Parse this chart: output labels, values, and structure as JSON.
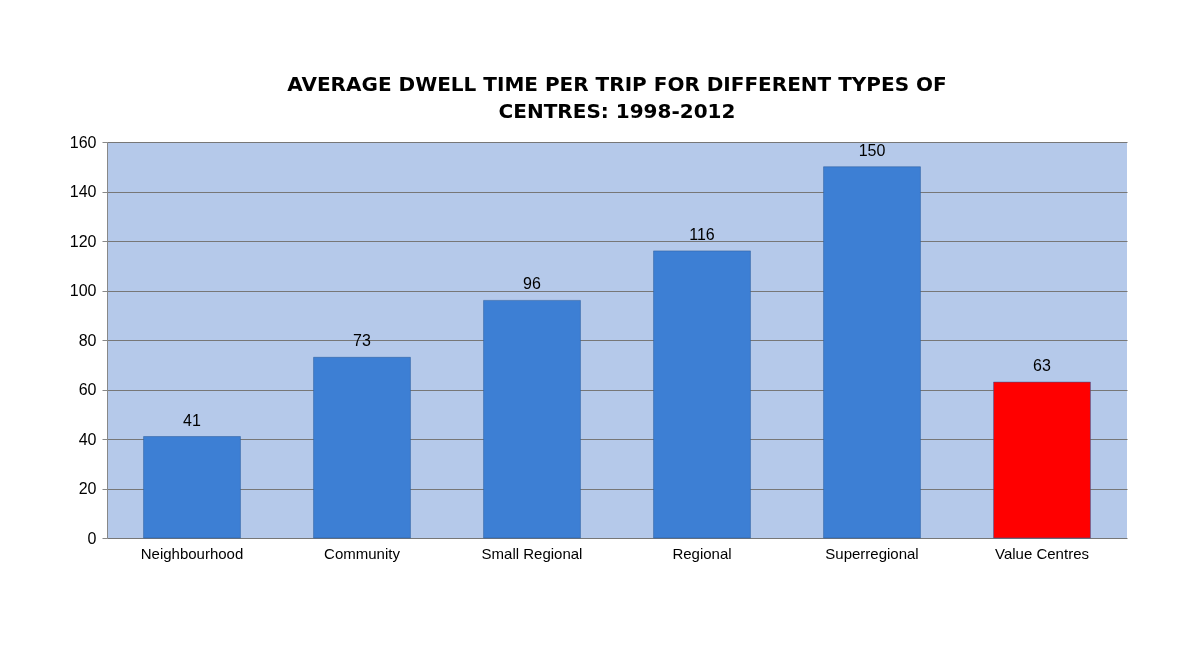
{
  "chart_data": {
    "type": "bar",
    "title": "AVERAGE DWELL TIME PER TRIP FOR DIFFERENT TYPES OF CENTRES:   1998-2012",
    "categories": [
      "Neighbourhood",
      "Community",
      "Small Regional",
      "Regional",
      "Superregional",
      "Value Centres"
    ],
    "values": [
      41,
      73,
      96,
      116,
      150,
      63
    ],
    "colors": [
      "#3d7fd4",
      "#3d7fd4",
      "#3d7fd4",
      "#3d7fd4",
      "#3d7fd4",
      "#ff0000"
    ],
    "ylim": [
      0,
      160
    ],
    "yticks": [
      0,
      20,
      40,
      60,
      80,
      100,
      120,
      140,
      160
    ],
    "grid": "y",
    "data_labels": true
  }
}
